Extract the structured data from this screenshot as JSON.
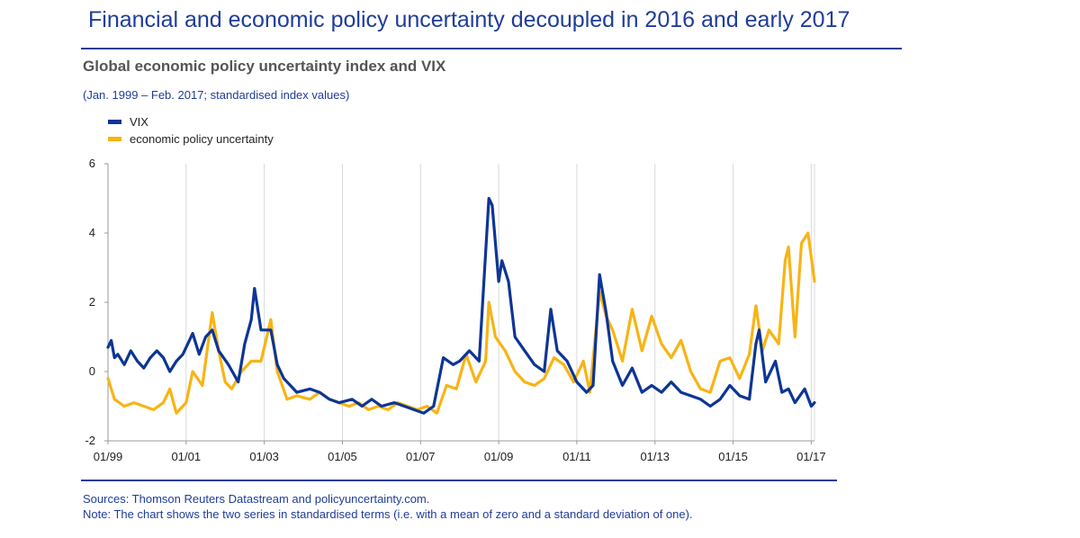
{
  "header": {
    "title": "Financial and economic policy uncertainty decoupled in 2016 and early 2017"
  },
  "footer": {
    "sources": "Sources: Thomson Reuters Datastream and policyuncertainty.com.",
    "note": "Note: The chart shows the two series in standardised terms (i.e. with a mean of zero and a standard deviation of one)."
  },
  "colors": {
    "brand": "#1f3d99",
    "vix": "#0d3595",
    "epu": "#f8b414",
    "grid": "#d9d9d9"
  },
  "chart_data": {
    "type": "line",
    "title": "Global economic policy uncertainty index and VIX",
    "subtitle": "(Jan. 1999 – Feb. 2017; standardised index values)",
    "xlabel": "",
    "ylabel": "",
    "xlim": [
      "1999-01",
      "2017-02"
    ],
    "ylim": [
      -2,
      6
    ],
    "y_ticks": [
      -2,
      0,
      2,
      4,
      6
    ],
    "x_ticks": [
      "01/99",
      "01/01",
      "01/03",
      "01/05",
      "01/07",
      "01/09",
      "01/11",
      "01/13",
      "01/15",
      "01/17"
    ],
    "x_tick_dates": [
      "1999-01",
      "2001-01",
      "2003-01",
      "2005-01",
      "2007-01",
      "2009-01",
      "2011-01",
      "2013-01",
      "2015-01",
      "2017-01"
    ],
    "grid": "vertical",
    "legend_position": "top-left",
    "series": [
      {
        "name": "VIX",
        "color": "#0d3595",
        "points": [
          [
            "1999-01",
            0.7
          ],
          [
            "1999-02",
            0.9
          ],
          [
            "1999-03",
            0.4
          ],
          [
            "1999-04",
            0.5
          ],
          [
            "1999-06",
            0.2
          ],
          [
            "1999-08",
            0.6
          ],
          [
            "1999-10",
            0.3
          ],
          [
            "1999-12",
            0.1
          ],
          [
            "2000-02",
            0.4
          ],
          [
            "2000-04",
            0.6
          ],
          [
            "2000-06",
            0.4
          ],
          [
            "2000-08",
            0.0
          ],
          [
            "2000-10",
            0.3
          ],
          [
            "2000-12",
            0.5
          ],
          [
            "2001-03",
            1.1
          ],
          [
            "2001-05",
            0.5
          ],
          [
            "2001-07",
            1.0
          ],
          [
            "2001-09",
            1.2
          ],
          [
            "2001-11",
            0.6
          ],
          [
            "2002-02",
            0.2
          ],
          [
            "2002-05",
            -0.3
          ],
          [
            "2002-07",
            0.8
          ],
          [
            "2002-09",
            1.5
          ],
          [
            "2002-10",
            2.4
          ],
          [
            "2002-12",
            1.2
          ],
          [
            "2003-03",
            1.2
          ],
          [
            "2003-05",
            0.2
          ],
          [
            "2003-07",
            -0.2
          ],
          [
            "2003-09",
            -0.4
          ],
          [
            "2003-11",
            -0.6
          ],
          [
            "2004-03",
            -0.5
          ],
          [
            "2004-06",
            -0.6
          ],
          [
            "2004-09",
            -0.8
          ],
          [
            "2004-12",
            -0.9
          ],
          [
            "2005-04",
            -0.8
          ],
          [
            "2005-07",
            -1.0
          ],
          [
            "2005-10",
            -0.8
          ],
          [
            "2006-01",
            -1.0
          ],
          [
            "2006-05",
            -0.9
          ],
          [
            "2006-08",
            -1.0
          ],
          [
            "2006-11",
            -1.1
          ],
          [
            "2007-02",
            -1.2
          ],
          [
            "2007-05",
            -1.0
          ],
          [
            "2007-08",
            0.4
          ],
          [
            "2007-11",
            0.2
          ],
          [
            "2008-01",
            0.3
          ],
          [
            "2008-04",
            0.6
          ],
          [
            "2008-07",
            0.3
          ],
          [
            "2008-10",
            5.0
          ],
          [
            "2008-11",
            4.8
          ],
          [
            "2009-01",
            2.6
          ],
          [
            "2009-02",
            3.2
          ],
          [
            "2009-04",
            2.6
          ],
          [
            "2009-06",
            1.0
          ],
          [
            "2009-09",
            0.6
          ],
          [
            "2009-12",
            0.2
          ],
          [
            "2010-03",
            0.0
          ],
          [
            "2010-05",
            1.8
          ],
          [
            "2010-07",
            0.6
          ],
          [
            "2010-10",
            0.3
          ],
          [
            "2011-01",
            -0.3
          ],
          [
            "2011-04",
            -0.6
          ],
          [
            "2011-06",
            -0.4
          ],
          [
            "2011-08",
            2.8
          ],
          [
            "2011-10",
            1.7
          ],
          [
            "2011-12",
            0.3
          ],
          [
            "2012-03",
            -0.4
          ],
          [
            "2012-06",
            0.1
          ],
          [
            "2012-09",
            -0.6
          ],
          [
            "2012-12",
            -0.4
          ],
          [
            "2013-03",
            -0.6
          ],
          [
            "2013-06",
            -0.3
          ],
          [
            "2013-09",
            -0.6
          ],
          [
            "2013-12",
            -0.7
          ],
          [
            "2014-03",
            -0.8
          ],
          [
            "2014-06",
            -1.0
          ],
          [
            "2014-09",
            -0.8
          ],
          [
            "2014-12",
            -0.4
          ],
          [
            "2015-03",
            -0.7
          ],
          [
            "2015-06",
            -0.8
          ],
          [
            "2015-08",
            0.8
          ],
          [
            "2015-09",
            1.2
          ],
          [
            "2015-11",
            -0.3
          ],
          [
            "2016-02",
            0.3
          ],
          [
            "2016-04",
            -0.6
          ],
          [
            "2016-06",
            -0.5
          ],
          [
            "2016-08",
            -0.9
          ],
          [
            "2016-11",
            -0.5
          ],
          [
            "2017-01",
            -1.0
          ],
          [
            "2017-02",
            -0.9
          ]
        ]
      },
      {
        "name": "economic policy uncertainty",
        "color": "#f8b414",
        "points": [
          [
            "1999-01",
            -0.2
          ],
          [
            "1999-03",
            -0.8
          ],
          [
            "1999-06",
            -1.0
          ],
          [
            "1999-09",
            -0.9
          ],
          [
            "1999-12",
            -1.0
          ],
          [
            "2000-03",
            -1.1
          ],
          [
            "2000-06",
            -0.9
          ],
          [
            "2000-08",
            -0.5
          ],
          [
            "2000-10",
            -1.2
          ],
          [
            "2001-01",
            -0.9
          ],
          [
            "2001-03",
            0.0
          ],
          [
            "2001-06",
            -0.4
          ],
          [
            "2001-09",
            1.7
          ],
          [
            "2001-11",
            0.6
          ],
          [
            "2002-01",
            -0.3
          ],
          [
            "2002-03",
            -0.5
          ],
          [
            "2002-06",
            0.0
          ],
          [
            "2002-09",
            0.3
          ],
          [
            "2002-12",
            0.3
          ],
          [
            "2003-03",
            1.5
          ],
          [
            "2003-05",
            0.0
          ],
          [
            "2003-08",
            -0.8
          ],
          [
            "2003-11",
            -0.7
          ],
          [
            "2004-03",
            -0.8
          ],
          [
            "2004-06",
            -0.6
          ],
          [
            "2004-09",
            -0.8
          ],
          [
            "2004-12",
            -0.9
          ],
          [
            "2005-03",
            -1.0
          ],
          [
            "2005-06",
            -0.9
          ],
          [
            "2005-09",
            -1.1
          ],
          [
            "2005-12",
            -1.0
          ],
          [
            "2006-03",
            -1.1
          ],
          [
            "2006-06",
            -0.9
          ],
          [
            "2006-09",
            -1.0
          ],
          [
            "2006-12",
            -1.1
          ],
          [
            "2007-03",
            -1.0
          ],
          [
            "2007-06",
            -1.2
          ],
          [
            "2007-09",
            -0.4
          ],
          [
            "2007-12",
            -0.5
          ],
          [
            "2008-03",
            0.5
          ],
          [
            "2008-06",
            -0.3
          ],
          [
            "2008-09",
            0.3
          ],
          [
            "2008-10",
            2.0
          ],
          [
            "2008-12",
            1.0
          ],
          [
            "2009-03",
            0.6
          ],
          [
            "2009-06",
            0.0
          ],
          [
            "2009-09",
            -0.3
          ],
          [
            "2009-12",
            -0.4
          ],
          [
            "2010-03",
            -0.2
          ],
          [
            "2010-06",
            0.4
          ],
          [
            "2010-09",
            0.2
          ],
          [
            "2010-12",
            -0.3
          ],
          [
            "2011-03",
            0.3
          ],
          [
            "2011-05",
            -0.6
          ],
          [
            "2011-08",
            2.3
          ],
          [
            "2011-10",
            1.6
          ],
          [
            "2011-12",
            1.2
          ],
          [
            "2012-03",
            0.3
          ],
          [
            "2012-06",
            1.8
          ],
          [
            "2012-09",
            0.6
          ],
          [
            "2012-12",
            1.6
          ],
          [
            "2013-03",
            0.8
          ],
          [
            "2013-06",
            0.4
          ],
          [
            "2013-09",
            0.9
          ],
          [
            "2013-12",
            0.0
          ],
          [
            "2014-03",
            -0.5
          ],
          [
            "2014-06",
            -0.6
          ],
          [
            "2014-09",
            0.3
          ],
          [
            "2014-12",
            0.4
          ],
          [
            "2015-03",
            -0.2
          ],
          [
            "2015-06",
            0.5
          ],
          [
            "2015-08",
            1.9
          ],
          [
            "2015-10",
            0.6
          ],
          [
            "2015-12",
            1.2
          ],
          [
            "2016-03",
            0.8
          ],
          [
            "2016-05",
            3.2
          ],
          [
            "2016-06",
            3.6
          ],
          [
            "2016-08",
            1.0
          ],
          [
            "2016-10",
            3.7
          ],
          [
            "2016-12",
            4.0
          ],
          [
            "2017-02",
            2.6
          ]
        ]
      }
    ]
  }
}
